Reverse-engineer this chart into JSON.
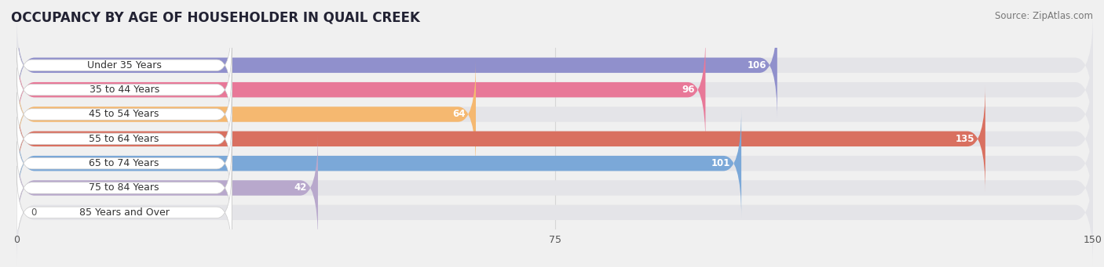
{
  "title": "OCCUPANCY BY AGE OF HOUSEHOLDER IN QUAIL CREEK",
  "source": "Source: ZipAtlas.com",
  "categories": [
    "Under 35 Years",
    "35 to 44 Years",
    "45 to 54 Years",
    "55 to 64 Years",
    "65 to 74 Years",
    "75 to 84 Years",
    "85 Years and Over"
  ],
  "values": [
    106,
    96,
    64,
    135,
    101,
    42,
    0
  ],
  "bar_colors": [
    "#9090cc",
    "#e87898",
    "#f5b870",
    "#d97060",
    "#7ba8d8",
    "#b8a8cc",
    "#88cccc"
  ],
  "xlim_max": 150,
  "xticks": [
    0,
    75,
    150
  ],
  "bg_color": "#f0f0f0",
  "track_color": "#e4e4e8",
  "title_fontsize": 12,
  "source_fontsize": 8.5,
  "label_fontsize": 9,
  "value_fontsize": 8.5
}
